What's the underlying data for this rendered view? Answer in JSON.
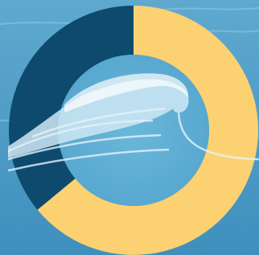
{
  "chart_data": {
    "type": "donut",
    "values": [
      64,
      36
    ],
    "colors": [
      "#fcd171",
      "#0e4a6e"
    ]
  }
}
